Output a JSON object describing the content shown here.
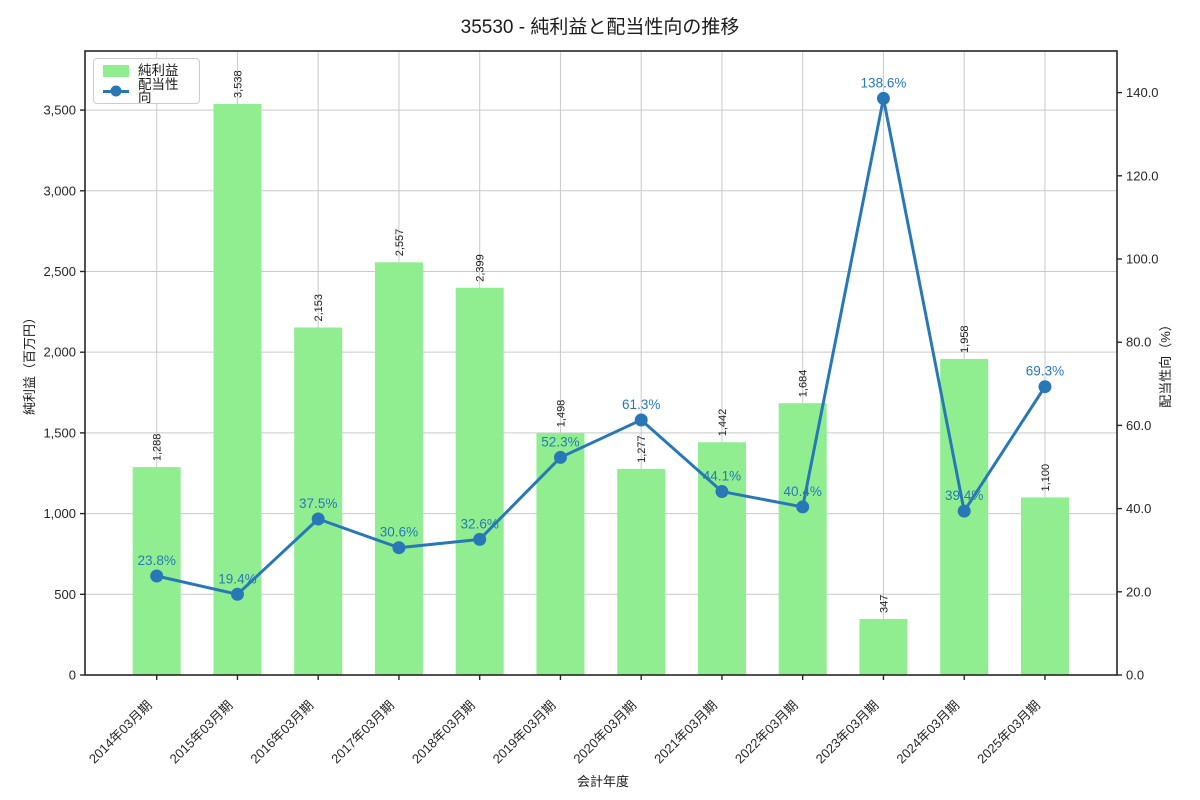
{
  "chart_data": {
    "type": "bar",
    "title": "35530 - 純利益と配当性向の推移",
    "x_axis": {
      "label": "会計年度",
      "categories": [
        "2014年03月期",
        "2015年03月期",
        "2016年03月期",
        "2017年03月期",
        "2018年03月期",
        "2019年03月期",
        "2020年03月期",
        "2021年03月期",
        "2022年03月期",
        "2023年03月期",
        "2024年03月期",
        "2025年03月期"
      ]
    },
    "left_axis": {
      "label": "純利益（百万円）",
      "tick_labels": [
        "0",
        "500",
        "1,000",
        "1,500",
        "2,000",
        "2,500",
        "3,000",
        "3,500"
      ],
      "tick_values": [
        0,
        500,
        1000,
        1500,
        2000,
        2500,
        3000,
        3500
      ],
      "range": [
        0,
        3866
      ]
    },
    "right_axis": {
      "label": "配当性向（%）",
      "tick_labels": [
        "0.0",
        "20.0",
        "40.0",
        "60.0",
        "80.0",
        "100.0",
        "120.0",
        "140.0"
      ],
      "tick_values": [
        0,
        20,
        40,
        60,
        80,
        100,
        120,
        140
      ],
      "range": [
        0,
        150
      ]
    },
    "series": [
      {
        "name": "純利益",
        "type": "bar",
        "axis": "left",
        "color": "#90ee90",
        "values": [
          1288,
          3538,
          2153,
          2557,
          2399,
          1498,
          1277,
          1442,
          1684,
          347,
          1958,
          1100
        ],
        "labels": [
          "1,288",
          "3,538",
          "2,153",
          "2,557",
          "2,399",
          "1,498",
          "1,277",
          "1,442",
          "1,684",
          "347",
          "1,958",
          "1,100"
        ]
      },
      {
        "name": "配当性向",
        "type": "line",
        "axis": "right",
        "color": "#2878b8",
        "values": [
          23.8,
          19.4,
          37.5,
          30.6,
          32.6,
          52.3,
          61.3,
          44.1,
          40.4,
          138.6,
          39.4,
          69.3
        ],
        "labels": [
          "23.8%",
          "19.4%",
          "37.5%",
          "30.6%",
          "32.6%",
          "52.3%",
          "61.3%",
          "44.1%",
          "40.4%",
          "138.6%",
          "39.4%",
          "69.3%"
        ]
      }
    ],
    "legend_position": "upper left",
    "grid": true,
    "grid_color": "#c9c9c9",
    "spine_color": "#262626"
  }
}
